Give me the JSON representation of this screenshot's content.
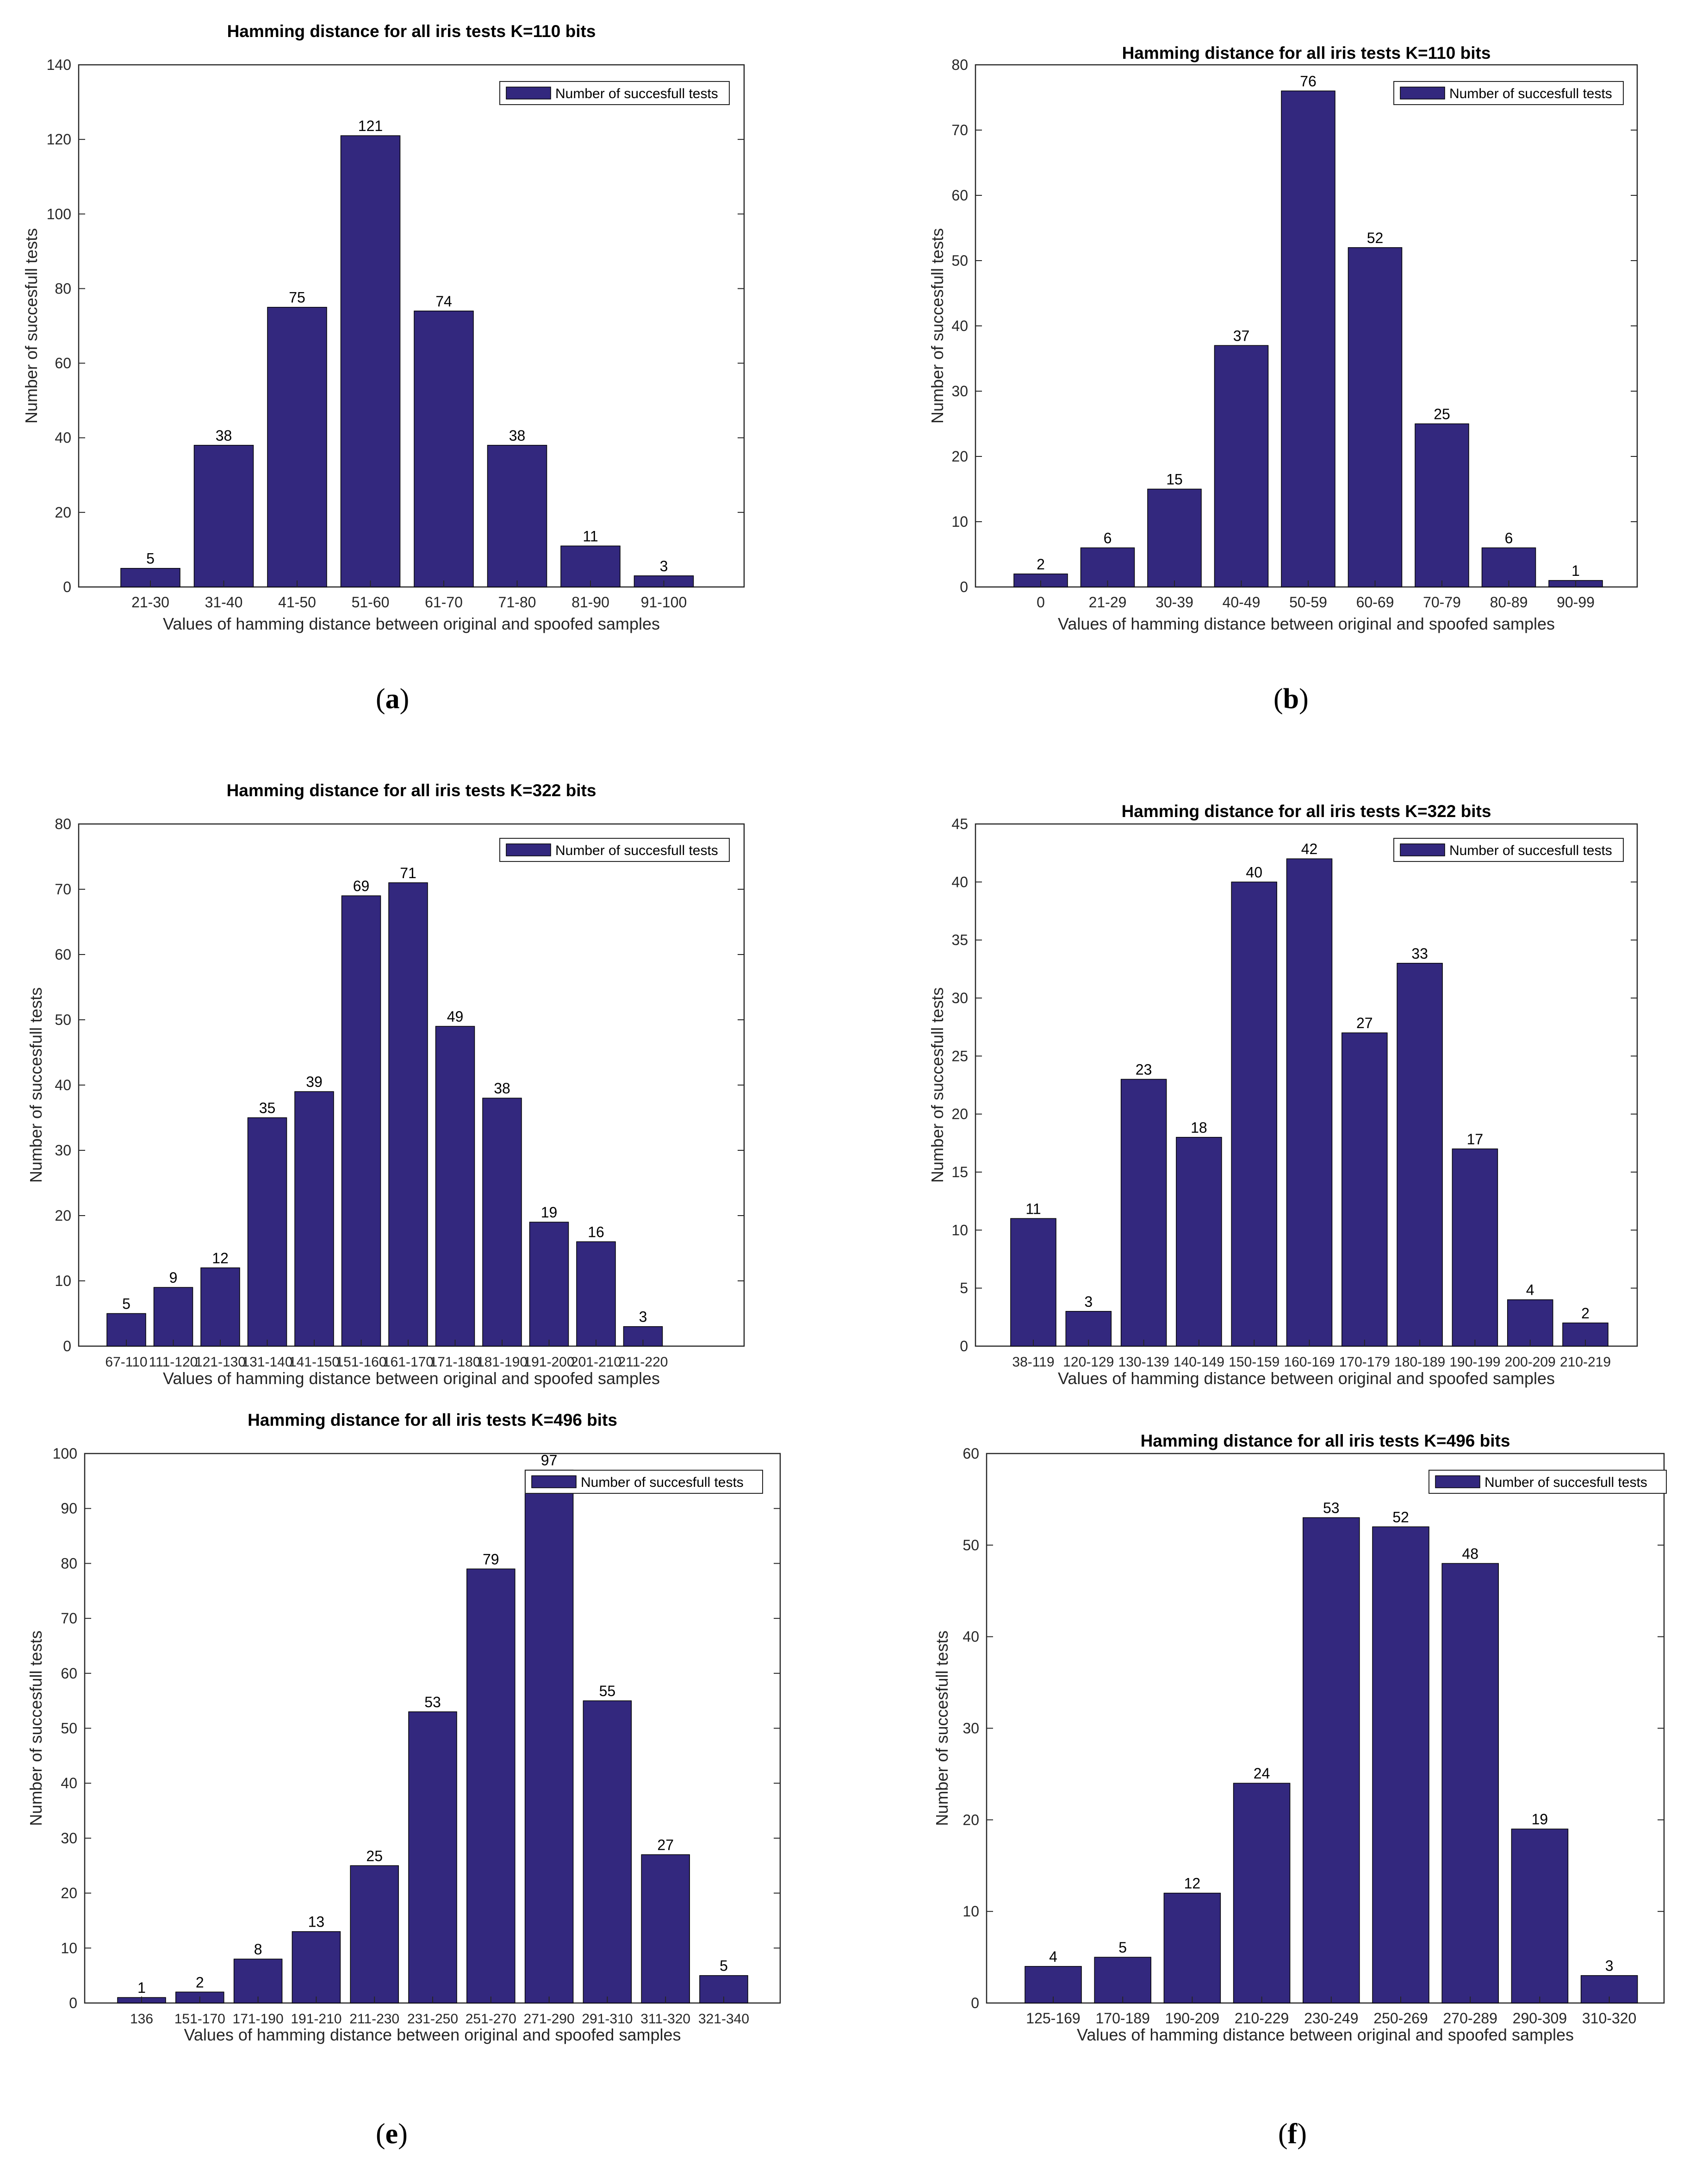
{
  "colors": {
    "bar": "#33287e",
    "axis": "#262626",
    "background": "#ffffff"
  },
  "chart_data": [
    {
      "id": "a",
      "type": "bar",
      "panel_label": "a",
      "title": "Hamming distance for all iris tests K=110 bits",
      "xlabel": "Values of hamming distance between original and spoofed samples",
      "ylabel": "Number of succesfull tests",
      "legend": "Number of succesfull tests",
      "legend_position": "top-right",
      "categories": [
        "21-30",
        "31-40",
        "41-50",
        "51-60",
        "61-70",
        "71-80",
        "81-90",
        "91-100"
      ],
      "values": [
        5,
        38,
        75,
        121,
        74,
        38,
        11,
        3
      ],
      "ylim": [
        0,
        140
      ],
      "yticks": [
        0,
        20,
        40,
        60,
        80,
        100,
        120,
        140
      ]
    },
    {
      "id": "b",
      "type": "bar",
      "panel_label": "b",
      "title": "Hamming distance for all iris tests K=110 bits",
      "xlabel": "Values of hamming distance between original and spoofed samples",
      "ylabel": "Number of succesfull tests",
      "legend": "Number of succesfull tests",
      "legend_position": "top-right",
      "categories": [
        "0",
        "21-29",
        "30-39",
        "40-49",
        "50-59",
        "60-69",
        "70-79",
        "80-89",
        "90-99"
      ],
      "values": [
        2,
        6,
        15,
        37,
        76,
        52,
        25,
        6,
        1
      ],
      "ylim": [
        0,
        80
      ],
      "yticks": [
        0,
        10,
        20,
        30,
        40,
        50,
        60,
        70,
        80
      ]
    },
    {
      "id": "c",
      "type": "bar",
      "panel_label": "",
      "title": "Hamming distance for all iris tests K=322 bits",
      "xlabel": "Values of hamming distance between original and spoofed samples",
      "ylabel": "Number of succesfull tests",
      "legend": "Number of succesfull tests",
      "legend_position": "top-right",
      "categories": [
        "67-110",
        "111-120",
        "121-130",
        "131-140",
        "141-150",
        "151-160",
        "161-170",
        "171-180",
        "181-190",
        "191-200",
        "201-210",
        "211-220"
      ],
      "values": [
        5,
        9,
        12,
        35,
        39,
        69,
        71,
        49,
        38,
        19,
        16,
        3
      ],
      "ylim": [
        0,
        80
      ],
      "yticks": [
        0,
        10,
        20,
        30,
        40,
        50,
        60,
        70,
        80
      ]
    },
    {
      "id": "d",
      "type": "bar",
      "panel_label": "",
      "title": "Hamming distance for all iris tests K=322 bits",
      "xlabel": "Values of hamming distance between original and spoofed samples",
      "ylabel": "Number of succesfull tests",
      "legend": "Number of succesfull tests",
      "legend_position": "top-right",
      "categories": [
        "38-119",
        "120-129",
        "130-139",
        "140-149",
        "150-159",
        "160-169",
        "170-179",
        "180-189",
        "190-199",
        "200-209",
        "210-219"
      ],
      "values": [
        11,
        3,
        23,
        18,
        40,
        42,
        27,
        33,
        17,
        4,
        2
      ],
      "ylim": [
        0,
        45
      ],
      "yticks": [
        0,
        5,
        10,
        15,
        20,
        25,
        30,
        35,
        40,
        45
      ]
    },
    {
      "id": "e",
      "type": "bar",
      "panel_label": "e",
      "title": "Hamming distance for all iris tests K=496 bits",
      "xlabel": "Values of hamming distance between original and spoofed samples",
      "ylabel": "Number of succesfull tests",
      "legend": "Number of succesfull tests",
      "legend_position": "top-right",
      "categories": [
        "136",
        "151-170",
        "171-190",
        "191-210",
        "211-230",
        "231-250",
        "251-270",
        "271-290",
        "291-310",
        "311-320",
        "321-340"
      ],
      "values": [
        1,
        2,
        8,
        13,
        25,
        53,
        79,
        97,
        55,
        27,
        5
      ],
      "ylim": [
        0,
        100
      ],
      "yticks": [
        0,
        10,
        20,
        30,
        40,
        50,
        60,
        70,
        80,
        90,
        100
      ]
    },
    {
      "id": "f",
      "type": "bar",
      "panel_label": "f",
      "title": "Hamming distance for all iris tests K=496 bits",
      "xlabel": "Values of hamming distance between original and spoofed samples",
      "ylabel": "Number of succesfull tests",
      "legend": "Number of succesfull tests",
      "legend_position": "top-right",
      "categories": [
        "125-169",
        "170-189",
        "190-209",
        "210-229",
        "230-249",
        "250-269",
        "270-289",
        "290-309",
        "310-320"
      ],
      "values": [
        4,
        5,
        12,
        24,
        53,
        52,
        48,
        19,
        3
      ],
      "ylim": [
        0,
        60
      ],
      "yticks": [
        0,
        10,
        20,
        30,
        40,
        50,
        60
      ]
    }
  ]
}
